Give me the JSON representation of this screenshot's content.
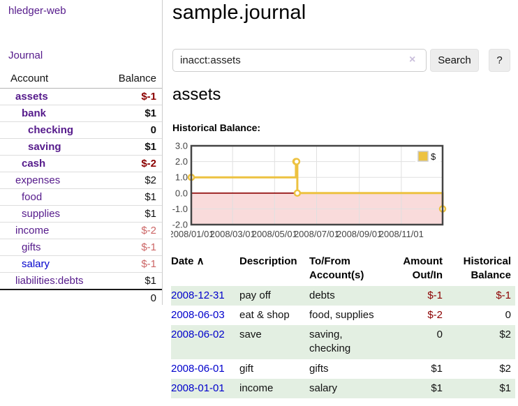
{
  "colors": {
    "link_purple": "#551a8b",
    "link_blue": "#0000cc",
    "negative_strong": "#8b0000",
    "negative_muted": "#cc6666",
    "row_green": "#e3efe2",
    "series_yellow": "#edc240"
  },
  "sidebar": {
    "brand": "hledger-web",
    "journal_link": "Journal",
    "accounts": {
      "headers": {
        "account": "Account",
        "balance": "Balance"
      },
      "rows": [
        {
          "name": "assets",
          "depth": 0,
          "emph": true,
          "balance": "$-1"
        },
        {
          "name": "bank",
          "depth": 1,
          "emph": true,
          "balance": "$1"
        },
        {
          "name": "checking",
          "depth": 2,
          "emph": true,
          "balance": "0"
        },
        {
          "name": "saving",
          "depth": 2,
          "emph": true,
          "balance": "$1"
        },
        {
          "name": "cash",
          "depth": 1,
          "emph": true,
          "balance": "$-2"
        },
        {
          "name": "expenses",
          "depth": 0,
          "emph": false,
          "balance": "$2"
        },
        {
          "name": "food",
          "depth": 1,
          "emph": false,
          "balance": "$1"
        },
        {
          "name": "supplies",
          "depth": 1,
          "emph": false,
          "balance": "$1"
        },
        {
          "name": "income",
          "depth": 0,
          "emph": false,
          "balance": "$-2"
        },
        {
          "name": "gifts",
          "depth": 1,
          "emph": false,
          "balance": "$-1"
        },
        {
          "name": "salary",
          "depth": 1,
          "emph": false,
          "balance": "$-1",
          "link_color": "#0000cc"
        },
        {
          "name": "liabilities:debts",
          "depth": 0,
          "emph": false,
          "balance": "$1"
        }
      ],
      "total": "0"
    }
  },
  "header": {
    "title": "sample.journal"
  },
  "search": {
    "value": "inacct:assets",
    "clear_icon": "×",
    "button_label": "Search",
    "help_label": "?"
  },
  "account_page": {
    "title": "assets",
    "chart_label": "Historical Balance:"
  },
  "chart_data": {
    "type": "line",
    "step": true,
    "title": "Historical Balance:",
    "series": [
      {
        "name": "$",
        "color": "#edc240",
        "x": [
          "2008-01-01",
          "2008-06-01",
          "2008-06-02",
          "2008-06-03",
          "2008-12-31"
        ],
        "values": [
          1,
          2,
          2,
          0,
          -1
        ]
      }
    ],
    "xlim": [
      "2008-01-01",
      "2008-12-31"
    ],
    "ylim": [
      -2,
      3
    ],
    "y_ticks": [
      3,
      2,
      1,
      0,
      -1,
      -2
    ],
    "y_tick_labels": [
      "3.0",
      "2.0",
      "1.0",
      "0.0",
      "-1.0",
      "-2.0"
    ],
    "x_tick_dates": [
      "2008-01-01",
      "2008-03-01",
      "2008-05-01",
      "2008-07-01",
      "2008-09-01",
      "2008-11-01"
    ],
    "x_tick_labels": [
      "2008/01/01",
      "2008/03/01",
      "2008/05/01",
      "2008/07/01",
      "2008/09/01",
      "2008/11/01"
    ],
    "legend": {
      "label": "$",
      "position": "top-right",
      "swatch_color": "#edc240"
    },
    "grid": true,
    "negative_region_color": "#f9dbdb",
    "zero_line_color": "#8b0000",
    "point_style": "open-circle"
  },
  "register": {
    "headers": [
      "Date",
      "Description",
      "To/From Account(s)",
      "Amount Out/In",
      "Historical Balance"
    ],
    "sort_caret": "∧",
    "rows": [
      {
        "date": "2008-12-31",
        "description": "pay off",
        "accounts": "debts",
        "amount": "$-1",
        "balance": "$-1"
      },
      {
        "date": "2008-06-03",
        "description": "eat & shop",
        "accounts": "food, supplies",
        "amount": "$-2",
        "balance": "0"
      },
      {
        "date": "2008-06-02",
        "description": "save",
        "accounts": "saving, checking",
        "amount": "0",
        "balance": "$2"
      },
      {
        "date": "2008-06-01",
        "description": "gift",
        "accounts": "gifts",
        "amount": "$1",
        "balance": "$2"
      },
      {
        "date": "2008-01-01",
        "description": "income",
        "accounts": "salary",
        "amount": "$1",
        "balance": "$1"
      }
    ]
  }
}
